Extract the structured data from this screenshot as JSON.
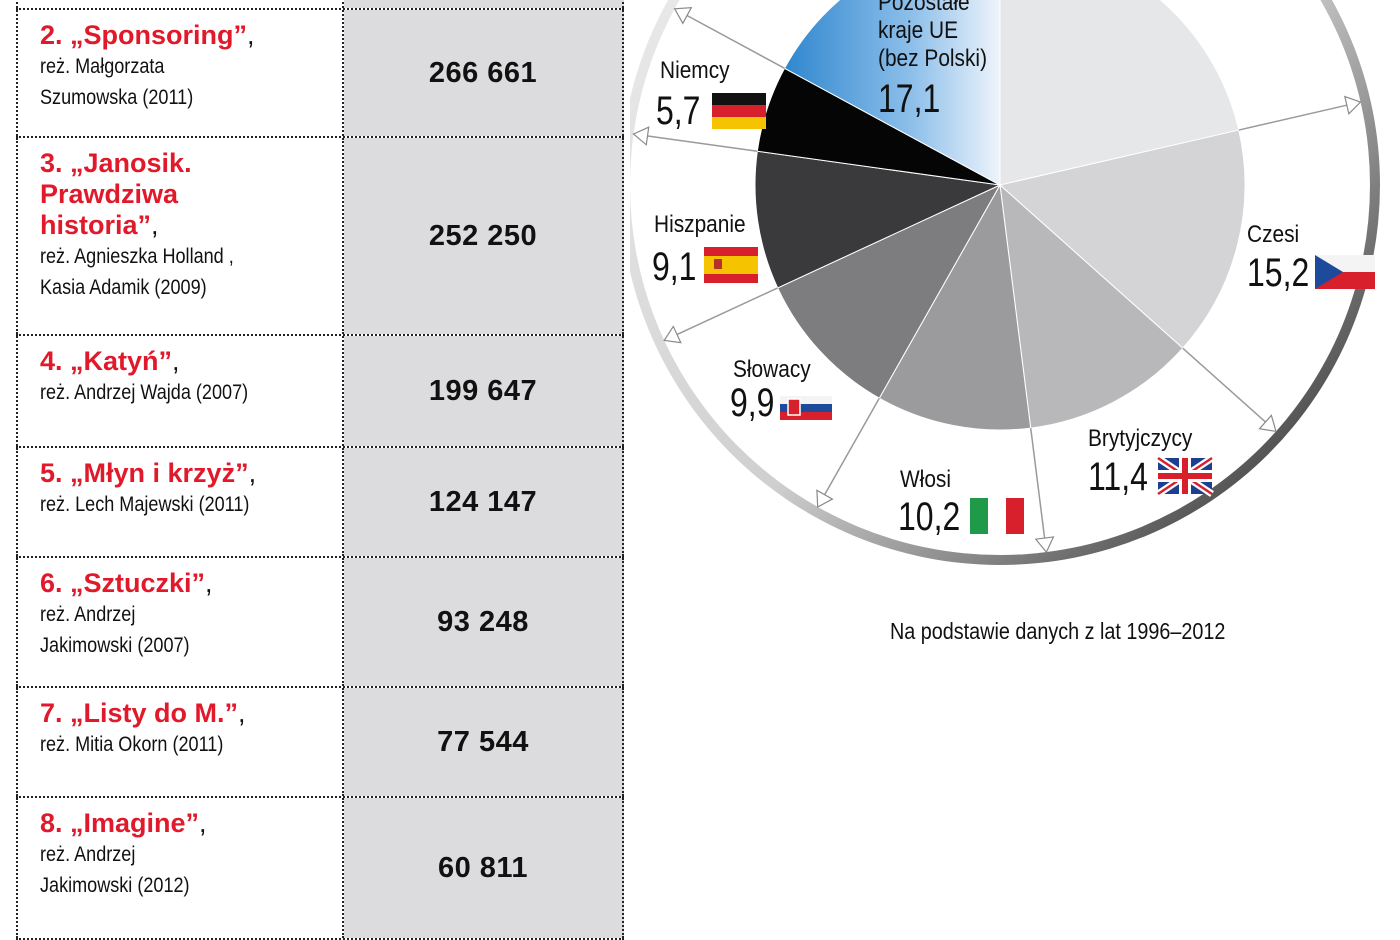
{
  "table": {
    "rows": [
      {
        "title": "",
        "director": [],
        "value": ""
      },
      {
        "title": "2. „Sponsoring”",
        "director": [
          "reż. Małgorzata",
          "Szumowska (2011)"
        ],
        "value": "266 661"
      },
      {
        "title": "3. „Janosik. Prawdziwa historia”",
        "title_lines": [
          "3. „Janosik.",
          "Prawdziwa",
          "historia”"
        ],
        "director": [
          "reż. Agnieszka Holland ,",
          "Kasia Adamik (2009)"
        ],
        "value": "252 250"
      },
      {
        "title": "4. „Katyń”",
        "director": [
          "reż. Andrzej Wajda (2007)"
        ],
        "value": "199 647"
      },
      {
        "title": "5. „Młyn i krzyż”",
        "director": [
          "reż. Lech Majewski (2011)"
        ],
        "value": "124 147"
      },
      {
        "title": "6. „Sztuczki”",
        "director": [
          "reż. Andrzej",
          "Jakimowski (2007)"
        ],
        "value": "93 248"
      },
      {
        "title": "7. „Listy do M.”",
        "director": [
          "reż. Mitia Okorn (2011)"
        ],
        "value": "77 544"
      },
      {
        "title": "8. „Imagine”",
        "director": [
          "reż. Andrzej",
          "Jakimowski (2012)"
        ],
        "value": "60 811"
      }
    ]
  },
  "chart_data": {
    "type": "pie",
    "title": "",
    "note": "Na podstawie danych z lat 1996–2012",
    "slices": [
      {
        "name": "",
        "value": 21.4,
        "color": "#e6e7e9"
      },
      {
        "name": "Czesi",
        "value": 15.2,
        "color": "#d4d4d6"
      },
      {
        "name": "Brytyjczycy",
        "value": 11.4,
        "color": "#b8b8ba"
      },
      {
        "name": "Włosi",
        "value": 10.2,
        "color": "#9b9b9d"
      },
      {
        "name": "Słowacy",
        "value": 9.9,
        "color": "#7d7d7f"
      },
      {
        "name": "Hiszpanie",
        "value": 9.1,
        "color": "#3a3a3c"
      },
      {
        "name": "Niemcy",
        "value": 5.7,
        "color": "#050505"
      },
      {
        "name": "Pozostałe kraje UE (bez Polski)",
        "name_lines": [
          "Pozostałe",
          "kraje UE",
          "(bez Polski)"
        ],
        "value": 17.1,
        "color": "#3d8fd4"
      }
    ],
    "value_labels": [
      "",
      "15,2",
      "11,4",
      "10,2",
      "9,9",
      "9,1",
      "5,7",
      "17,1"
    ],
    "flags": [
      "",
      "cz-flag-icon",
      "uk-flag-icon",
      "it-flag-icon",
      "sk-flag-icon",
      "es-flag-icon",
      "de-flag-icon",
      ""
    ]
  }
}
